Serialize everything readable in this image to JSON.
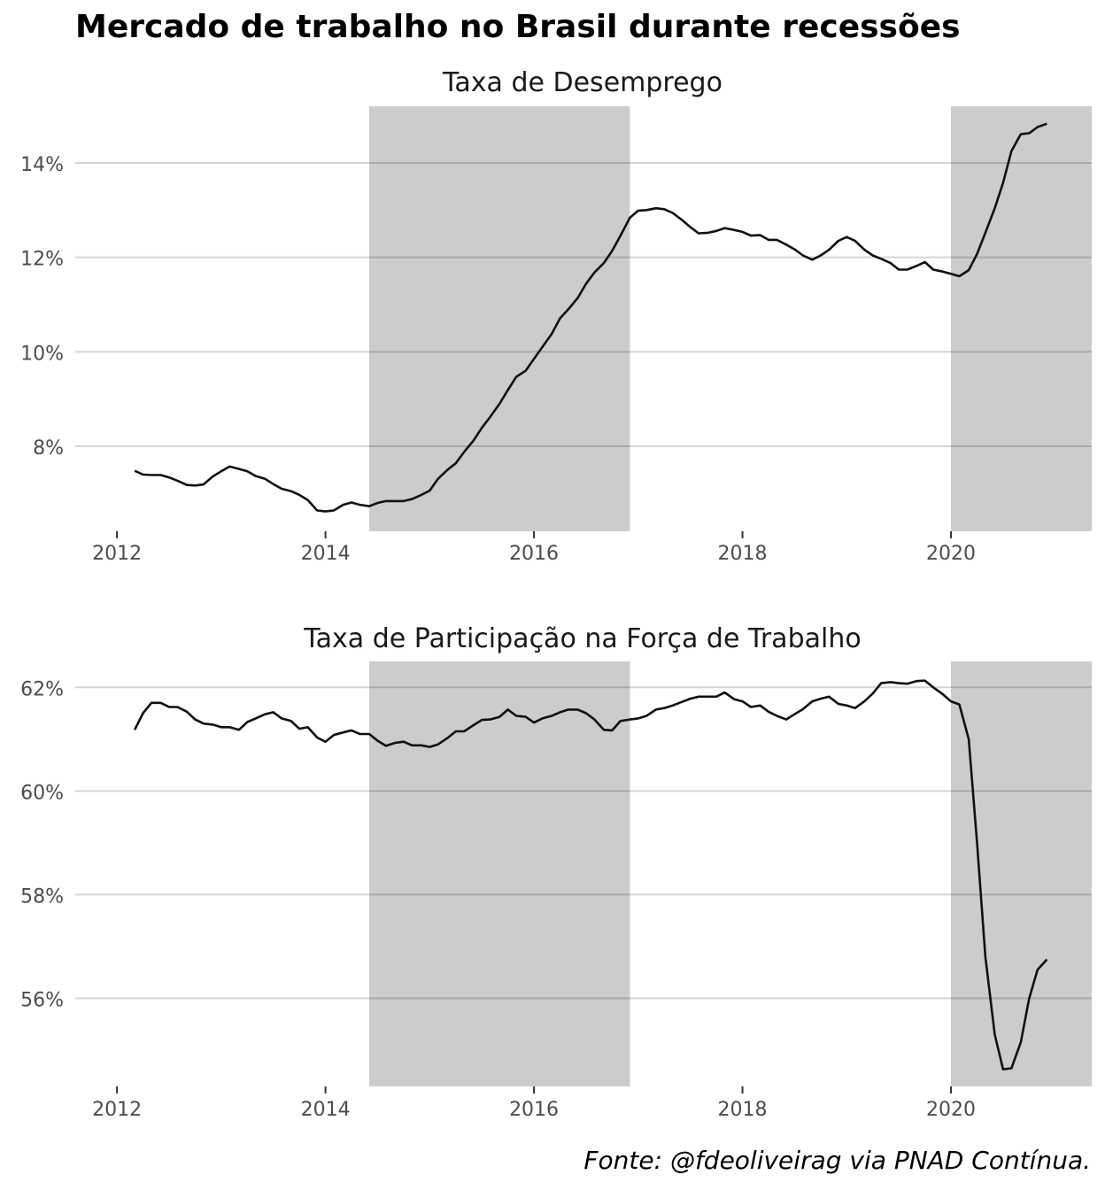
{
  "title": "Mercado de trabalho no Brasil durante recessões",
  "caption": "Fonte: @fdeoliveirag via PNAD Contínua.",
  "colors": {
    "line": "#111111",
    "recession_band": "#cccccc",
    "grid": "#d4d4d4",
    "tick_text": "#4d4d4d"
  },
  "recessions": [
    {
      "start": 2014.42,
      "end": 2016.92
    },
    {
      "start": 2020.0,
      "end": 2021.35
    }
  ],
  "chart_data": [
    {
      "type": "line",
      "title": "Taxa de Desemprego",
      "xlim": [
        2011.6,
        2021.35
      ],
      "ylim": [
        6.2,
        15.2
      ],
      "x_ticks": [
        2012,
        2014,
        2016,
        2018,
        2020
      ],
      "x_tick_labels": [
        "2012",
        "2014",
        "2016",
        "2018",
        "2020"
      ],
      "y_ticks": [
        8,
        10,
        12,
        14
      ],
      "y_tick_labels": [
        "8%",
        "10%",
        "12%",
        "14%"
      ],
      "grid": "horizontal",
      "x": [
        2012.17,
        2012.25,
        2012.33,
        2012.42,
        2012.5,
        2012.58,
        2012.67,
        2012.75,
        2012.83,
        2012.92,
        2013.0,
        2013.08,
        2013.17,
        2013.25,
        2013.33,
        2013.42,
        2013.5,
        2013.58,
        2013.67,
        2013.75,
        2013.83,
        2013.92,
        2014.0,
        2014.08,
        2014.17,
        2014.25,
        2014.33,
        2014.42,
        2014.5,
        2014.58,
        2014.67,
        2014.75,
        2014.83,
        2014.92,
        2015.0,
        2015.08,
        2015.17,
        2015.25,
        2015.33,
        2015.42,
        2015.5,
        2015.58,
        2015.67,
        2015.75,
        2015.83,
        2015.92,
        2016.0,
        2016.08,
        2016.17,
        2016.25,
        2016.33,
        2016.42,
        2016.5,
        2016.58,
        2016.67,
        2016.75,
        2016.83,
        2016.92,
        2017.0,
        2017.08,
        2017.17,
        2017.25,
        2017.33,
        2017.42,
        2017.5,
        2017.58,
        2017.67,
        2017.75,
        2017.83,
        2017.92,
        2018.0,
        2018.08,
        2018.17,
        2018.25,
        2018.33,
        2018.42,
        2018.5,
        2018.58,
        2018.67,
        2018.75,
        2018.83,
        2018.92,
        2019.0,
        2019.08,
        2019.17,
        2019.25,
        2019.33,
        2019.42,
        2019.5,
        2019.58,
        2019.67,
        2019.75,
        2019.83,
        2019.92,
        2020.0,
        2020.08,
        2020.17,
        2020.25,
        2020.33,
        2020.42,
        2020.5,
        2020.58,
        2020.67,
        2020.75,
        2020.83,
        2020.92
      ],
      "y": [
        7.48,
        7.4,
        7.39,
        7.39,
        7.34,
        7.27,
        7.18,
        7.17,
        7.19,
        7.36,
        7.47,
        7.57,
        7.52,
        7.47,
        7.37,
        7.31,
        7.2,
        7.1,
        7.05,
        6.97,
        6.86,
        6.64,
        6.62,
        6.64,
        6.76,
        6.81,
        6.76,
        6.73,
        6.8,
        6.84,
        6.84,
        6.84,
        6.88,
        6.97,
        7.06,
        7.31,
        7.5,
        7.64,
        7.88,
        8.12,
        8.39,
        8.62,
        8.9,
        9.19,
        9.47,
        9.6,
        9.85,
        10.1,
        10.38,
        10.71,
        10.9,
        11.14,
        11.44,
        11.68,
        11.88,
        12.14,
        12.46,
        12.84,
        12.99,
        13.0,
        13.04,
        13.02,
        12.94,
        12.79,
        12.64,
        12.51,
        12.52,
        12.56,
        12.62,
        12.58,
        12.54,
        12.46,
        12.47,
        12.37,
        12.37,
        12.27,
        12.17,
        12.04,
        11.95,
        12.04,
        12.16,
        12.35,
        12.43,
        12.35,
        12.16,
        12.04,
        11.97,
        11.88,
        11.74,
        11.74,
        11.82,
        11.9,
        11.74,
        11.7,
        11.65,
        11.6,
        11.73,
        12.07,
        12.52,
        13.04,
        13.58,
        14.25,
        14.61,
        14.63,
        14.76,
        14.83
      ]
    },
    {
      "type": "line",
      "title": "Taxa de Participação na Força de Trabalho",
      "xlim": [
        2011.6,
        2021.35
      ],
      "ylim": [
        54.3,
        62.5
      ],
      "x_ticks": [
        2012,
        2014,
        2016,
        2018,
        2020
      ],
      "x_tick_labels": [
        "2012",
        "2014",
        "2016",
        "2018",
        "2020"
      ],
      "y_ticks": [
        56,
        58,
        60,
        62
      ],
      "y_tick_labels": [
        "56%",
        "58%",
        "60%",
        "62%"
      ],
      "grid": "horizontal",
      "x": [
        2012.17,
        2012.25,
        2012.33,
        2012.42,
        2012.5,
        2012.58,
        2012.67,
        2012.75,
        2012.83,
        2012.92,
        2013.0,
        2013.08,
        2013.17,
        2013.25,
        2013.33,
        2013.42,
        2013.5,
        2013.58,
        2013.67,
        2013.75,
        2013.83,
        2013.92,
        2014.0,
        2014.08,
        2014.17,
        2014.25,
        2014.33,
        2014.42,
        2014.5,
        2014.58,
        2014.67,
        2014.75,
        2014.83,
        2014.92,
        2015.0,
        2015.08,
        2015.17,
        2015.25,
        2015.33,
        2015.42,
        2015.5,
        2015.58,
        2015.67,
        2015.75,
        2015.83,
        2015.92,
        2016.0,
        2016.08,
        2016.17,
        2016.25,
        2016.33,
        2016.42,
        2016.5,
        2016.58,
        2016.67,
        2016.75,
        2016.83,
        2016.92,
        2017.0,
        2017.08,
        2017.17,
        2017.25,
        2017.33,
        2017.42,
        2017.5,
        2017.58,
        2017.67,
        2017.75,
        2017.83,
        2017.92,
        2018.0,
        2018.08,
        2018.17,
        2018.25,
        2018.33,
        2018.42,
        2018.5,
        2018.58,
        2018.67,
        2018.75,
        2018.83,
        2018.92,
        2019.0,
        2019.08,
        2019.17,
        2019.25,
        2019.33,
        2019.42,
        2019.5,
        2019.58,
        2019.67,
        2019.75,
        2019.83,
        2019.92,
        2020.0,
        2020.08,
        2020.17,
        2020.25,
        2020.33,
        2020.42,
        2020.5,
        2020.58,
        2020.67,
        2020.75,
        2020.83,
        2020.92
      ],
      "y": [
        61.18,
        61.5,
        61.7,
        61.7,
        61.62,
        61.62,
        61.53,
        61.38,
        61.3,
        61.28,
        61.23,
        61.23,
        61.18,
        61.33,
        61.4,
        61.48,
        61.52,
        61.4,
        61.35,
        61.2,
        61.23,
        61.03,
        60.95,
        61.08,
        61.13,
        61.17,
        61.1,
        61.1,
        60.97,
        60.87,
        60.93,
        60.95,
        60.88,
        60.88,
        60.85,
        60.9,
        61.02,
        61.15,
        61.15,
        61.27,
        61.37,
        61.38,
        61.43,
        61.57,
        61.45,
        61.43,
        61.32,
        61.4,
        61.45,
        61.52,
        61.57,
        61.57,
        61.5,
        61.38,
        61.18,
        61.17,
        61.35,
        61.38,
        61.4,
        61.45,
        61.57,
        61.6,
        61.65,
        61.72,
        61.78,
        61.82,
        61.82,
        61.82,
        61.9,
        61.77,
        61.73,
        61.62,
        61.65,
        61.53,
        61.45,
        61.38,
        61.48,
        61.58,
        61.73,
        61.78,
        61.82,
        61.68,
        61.65,
        61.6,
        61.73,
        61.88,
        62.08,
        62.1,
        62.08,
        62.07,
        62.12,
        62.13,
        62.0,
        61.87,
        61.73,
        61.67,
        61.0,
        59.0,
        56.8,
        55.3,
        54.63,
        54.65,
        55.15,
        56.0,
        56.55,
        56.75
      ]
    }
  ]
}
